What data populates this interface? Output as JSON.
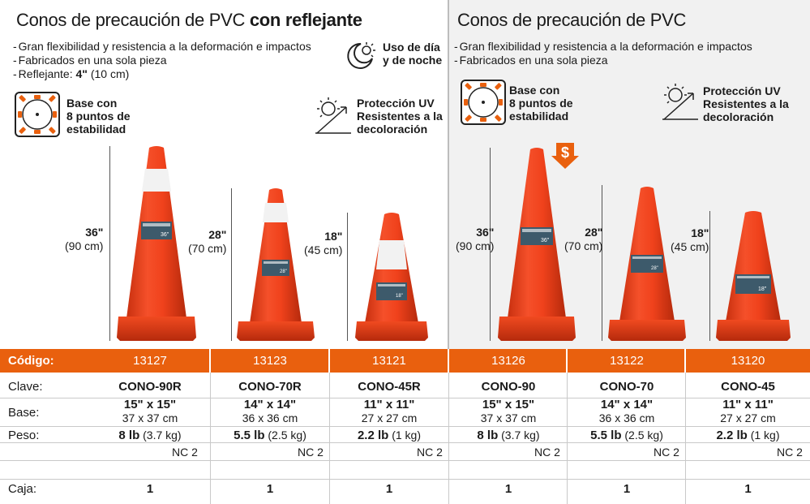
{
  "left_panel": {
    "title_main": "Conos de precaución de PVC",
    "title_bold": " con reflejante",
    "bullets": [
      "Gran flexibilidad y resistencia a la deformación e impactos",
      "Fabricados en una sola pieza"
    ],
    "reflector_label": "Reflejante: ",
    "reflector_value": "4\"",
    "reflector_metric": " (10 cm)",
    "feature_day_night": [
      "Uso de día",
      "y de noche"
    ],
    "feature_base": [
      "Base con",
      "8 puntos de",
      "estabilidad"
    ],
    "feature_uv": [
      "Protección UV",
      "Resistentes a la",
      "decoloración"
    ],
    "cones": [
      {
        "size": "36\"",
        "metric": "(90 cm)",
        "label": "36\""
      },
      {
        "size": "28\"",
        "metric": "(70 cm)",
        "label": "28\""
      },
      {
        "size": "18\"",
        "metric": "(45 cm)",
        "label": "18\""
      }
    ]
  },
  "right_panel": {
    "title": "Conos de precaución de PVC",
    "bullets": [
      "Gran flexibilidad y resistencia a la deformación e impactos",
      "Fabricados en una sola pieza"
    ],
    "feature_base": [
      "Base con",
      "8 puntos de",
      "estabilidad"
    ],
    "feature_uv": [
      "Protección UV",
      "Resistentes a la",
      "decoloración"
    ],
    "dollar": "$",
    "cones": [
      {
        "size": "36\"",
        "metric": "(90 cm)",
        "label": "36\""
      },
      {
        "size": "28\"",
        "metric": "(70 cm)",
        "label": "28\""
      },
      {
        "size": "18\"",
        "metric": "(45 cm)",
        "label": "18\""
      }
    ]
  },
  "table": {
    "labels": {
      "codigo": "Código:",
      "clave": "Clave:",
      "base": "Base:",
      "peso": "Peso:",
      "caja": "Caja:"
    },
    "columns": [
      {
        "codigo": "13127",
        "clave": "CONO-90R",
        "base_in": "15\" x 15\"",
        "base_cm": "37 x 37 cm",
        "peso_lb": "8 lb",
        "peso_kg": " (3.7 kg)",
        "nc": "NC 2",
        "caja": "1"
      },
      {
        "codigo": "13123",
        "clave": "CONO-70R",
        "base_in": "14\" x 14\"",
        "base_cm": "36 x 36 cm",
        "peso_lb": "5.5 lb",
        "peso_kg": " (2.5 kg)",
        "nc": "NC 2",
        "caja": "1"
      },
      {
        "codigo": "13121",
        "clave": "CONO-45R",
        "base_in": "11\" x 11\"",
        "base_cm": "27 x 27 cm",
        "peso_lb": "2.2 lb",
        "peso_kg": " (1 kg)",
        "nc": "NC 2",
        "caja": "1"
      },
      {
        "codigo": "13126",
        "clave": "CONO-90",
        "base_in": "15\" x 15\"",
        "base_cm": "37 x 37 cm",
        "peso_lb": "8 lb",
        "peso_kg": " (3.7 kg)",
        "nc": "NC 2",
        "caja": "1"
      },
      {
        "codigo": "13122",
        "clave": "CONO-70",
        "base_in": "14\" x 14\"",
        "base_cm": "36 x 36 cm",
        "peso_lb": "5.5 lb",
        "peso_kg": " (2.5 kg)",
        "nc": "NC 2",
        "caja": "1"
      },
      {
        "codigo": "13120",
        "clave": "CONO-45",
        "base_in": "11\" x 11\"",
        "base_cm": "27 x 27 cm",
        "peso_lb": "2.2 lb",
        "peso_kg": " (1 kg)",
        "nc": "NC 2",
        "caja": "1"
      }
    ]
  },
  "colors": {
    "orange": "#e9600e",
    "cone": "#f0421c",
    "cone_dark": "#c8300f",
    "reflector": "#f2f2f2"
  }
}
